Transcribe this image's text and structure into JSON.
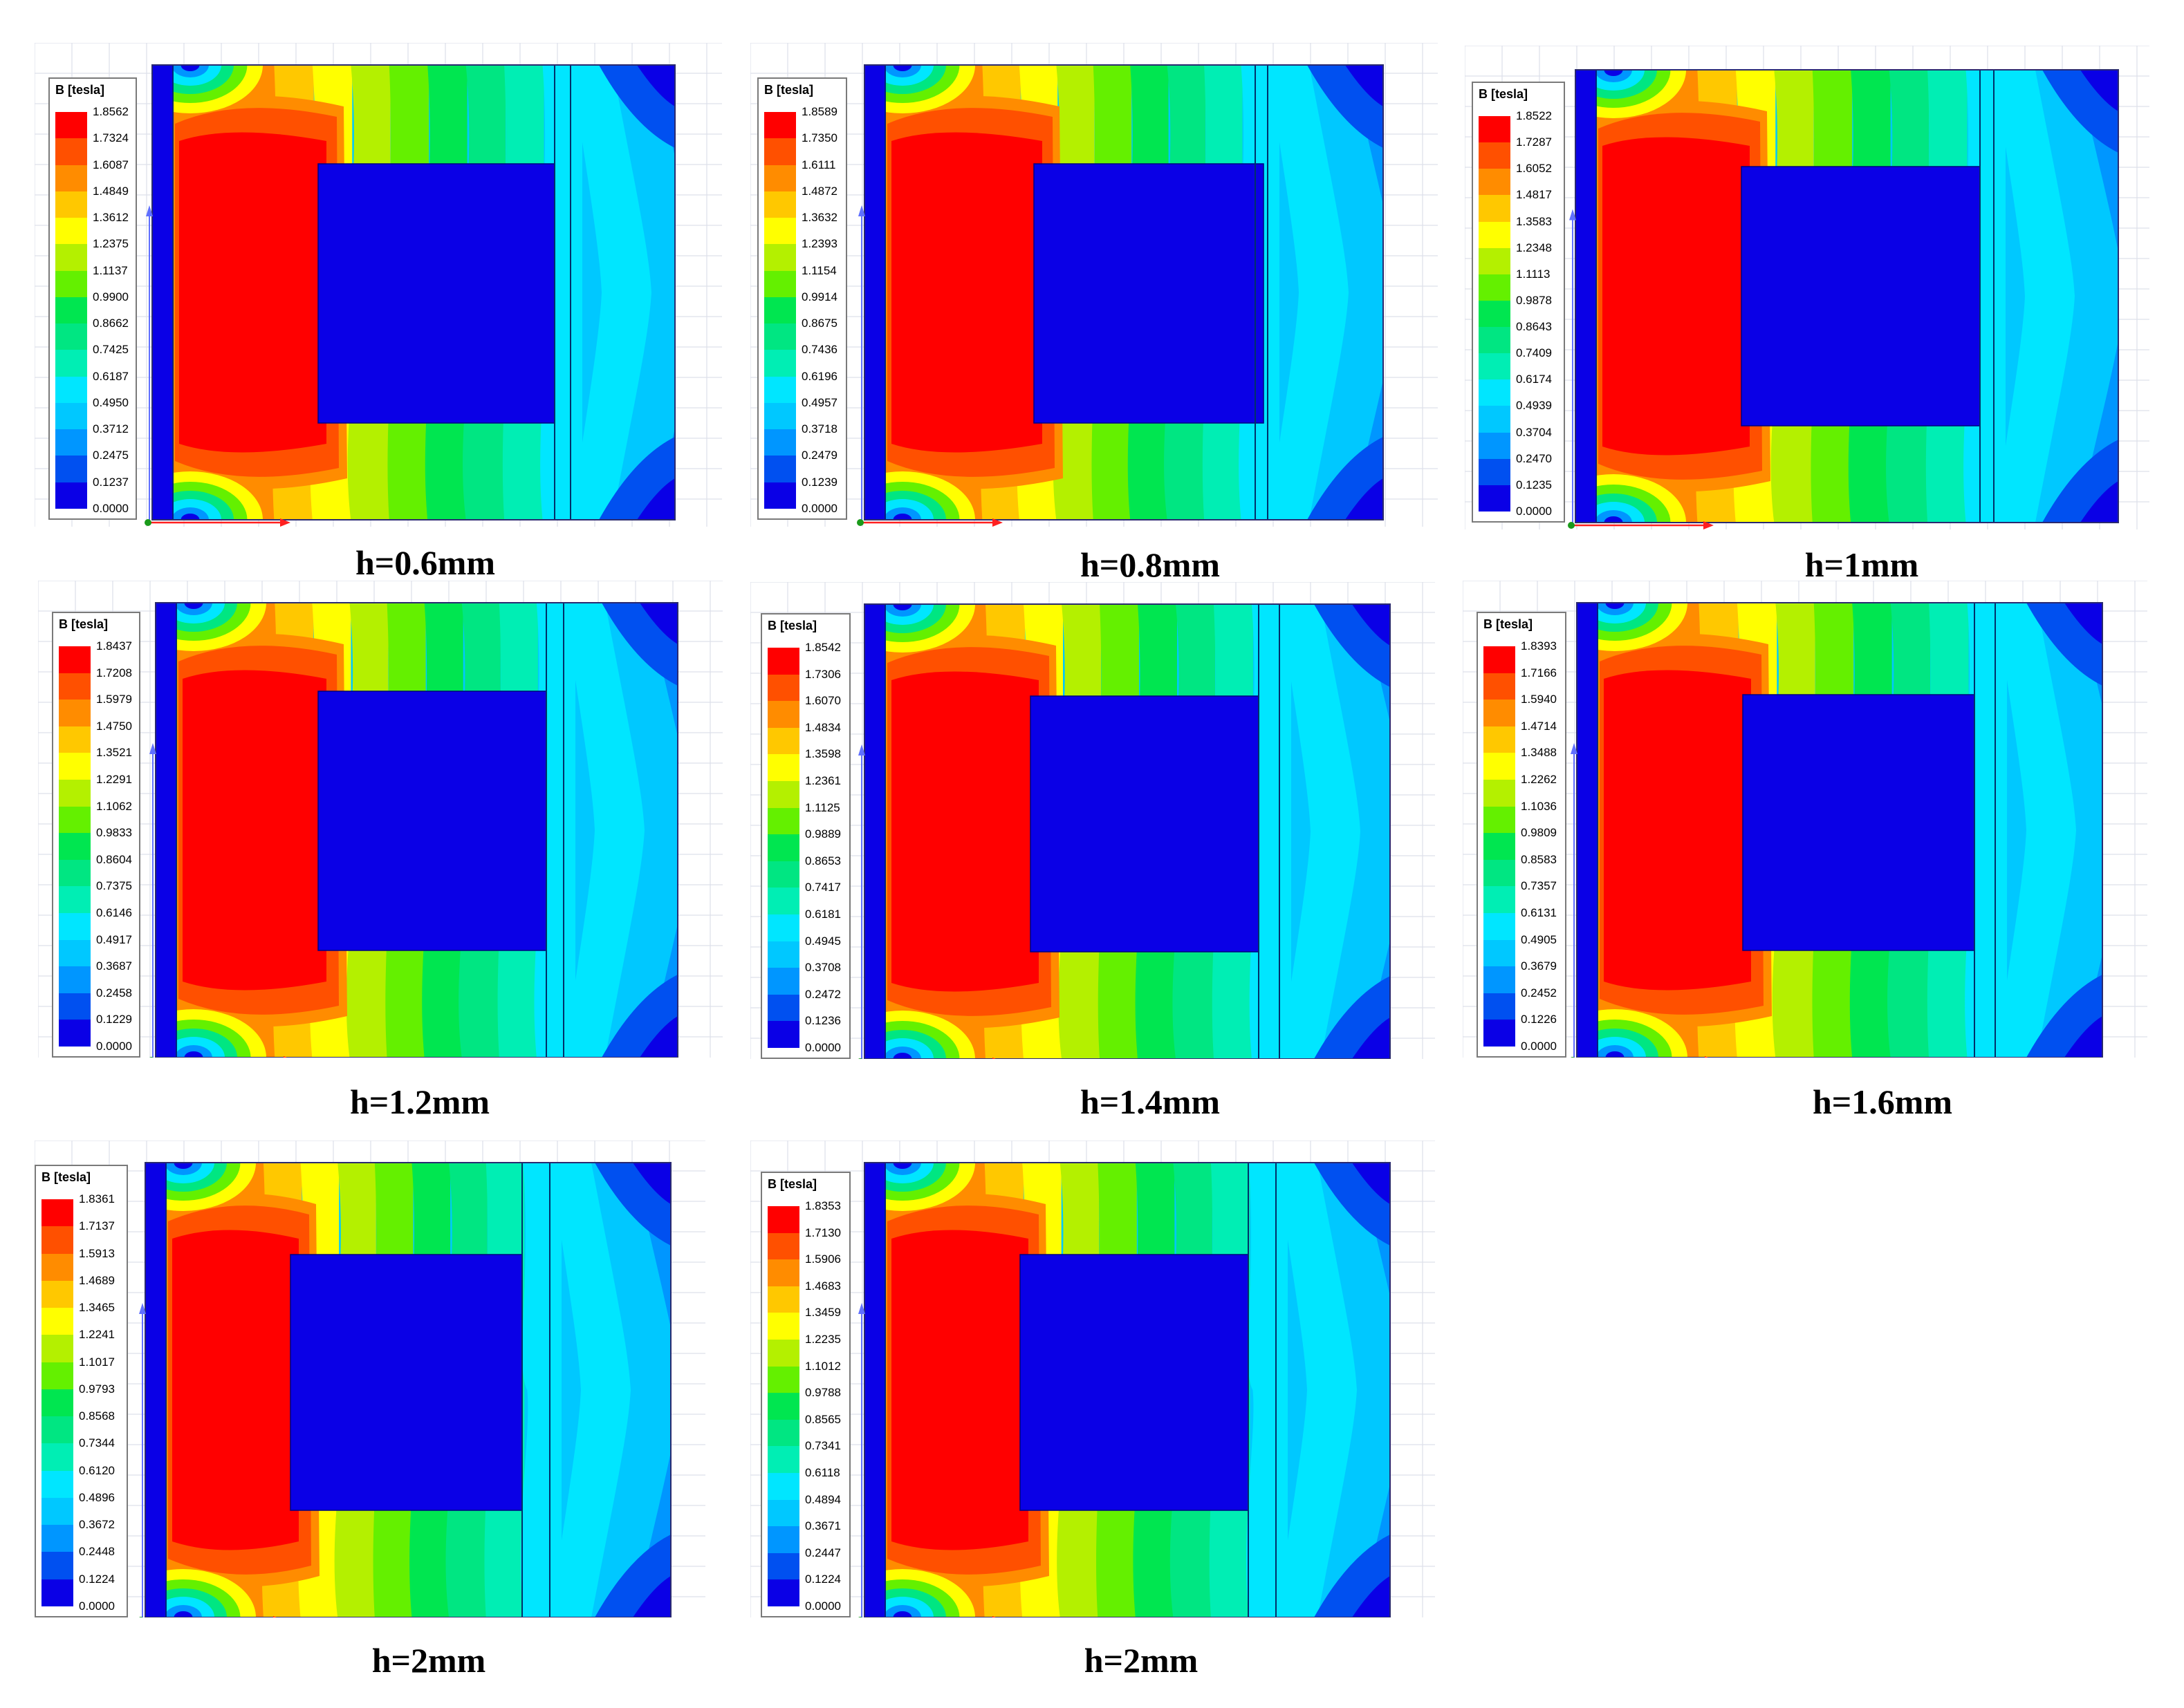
{
  "legend_title": "B [tesla]",
  "colorscale": [
    "#0a00e6",
    "#0050f0",
    "#0096ff",
    "#00c8ff",
    "#00e6ff",
    "#00eeb4",
    "#00e682",
    "#00e650",
    "#64f000",
    "#b4f000",
    "#ffff00",
    "#ffc800",
    "#ff8c00",
    "#ff5000",
    "#ff0000"
  ],
  "panels": [
    {
      "caption": "h=0.6mm",
      "legend": [
        "1.8562",
        "1.7324",
        "1.6087",
        "1.4849",
        "1.3612",
        "1.2375",
        "1.1137",
        "0.9900",
        "0.8662",
        "0.7425",
        "0.6187",
        "0.4950",
        "0.3712",
        "0.2475",
        "0.1237",
        "0.0000"
      ]
    },
    {
      "caption": "h=0.8mm",
      "legend": [
        "1.8589",
        "1.7350",
        "1.6111",
        "1.4872",
        "1.3632",
        "1.2393",
        "1.1154",
        "0.9914",
        "0.8675",
        "0.7436",
        "0.6196",
        "0.4957",
        "0.3718",
        "0.2479",
        "0.1239",
        "0.0000"
      ]
    },
    {
      "caption": "h=1mm",
      "legend": [
        "1.8522",
        "1.7287",
        "1.6052",
        "1.4817",
        "1.3583",
        "1.2348",
        "1.1113",
        "0.9878",
        "0.8643",
        "0.7409",
        "0.6174",
        "0.4939",
        "0.3704",
        "0.2470",
        "0.1235",
        "0.0000"
      ]
    },
    {
      "caption": "h=1.2mm",
      "legend": [
        "1.8437",
        "1.7208",
        "1.5979",
        "1.4750",
        "1.3521",
        "1.2291",
        "1.1062",
        "0.9833",
        "0.8604",
        "0.7375",
        "0.6146",
        "0.4917",
        "0.3687",
        "0.2458",
        "0.1229",
        "0.0000"
      ]
    },
    {
      "caption": "h=1.4mm",
      "legend": [
        "1.8542",
        "1.7306",
        "1.6070",
        "1.4834",
        "1.3598",
        "1.2361",
        "1.1125",
        "0.9889",
        "0.8653",
        "0.7417",
        "0.6181",
        "0.4945",
        "0.3708",
        "0.2472",
        "0.1236",
        "0.0000"
      ]
    },
    {
      "caption": "h=1.6mm",
      "legend": [
        "1.8393",
        "1.7166",
        "1.5940",
        "1.4714",
        "1.3488",
        "1.2262",
        "1.1036",
        "0.9809",
        "0.8583",
        "0.7357",
        "0.6131",
        "0.4905",
        "0.3679",
        "0.2452",
        "0.1226",
        "0.0000"
      ]
    },
    {
      "caption": "h=2mm",
      "legend": [
        "1.8361",
        "1.7137",
        "1.5913",
        "1.4689",
        "1.3465",
        "1.2241",
        "1.1017",
        "0.9793",
        "0.8568",
        "0.7344",
        "0.6120",
        "0.4896",
        "0.3672",
        "0.2448",
        "0.1224",
        "0.0000"
      ]
    },
    {
      "caption": "h=2mm",
      "legend": [
        "1.8353",
        "1.7130",
        "1.5906",
        "1.4683",
        "1.3459",
        "1.2235",
        "1.1012",
        "0.9788",
        "0.8565",
        "0.7341",
        "0.6118",
        "0.4894",
        "0.3671",
        "0.2447",
        "0.1224",
        "0.0000"
      ]
    }
  ]
}
